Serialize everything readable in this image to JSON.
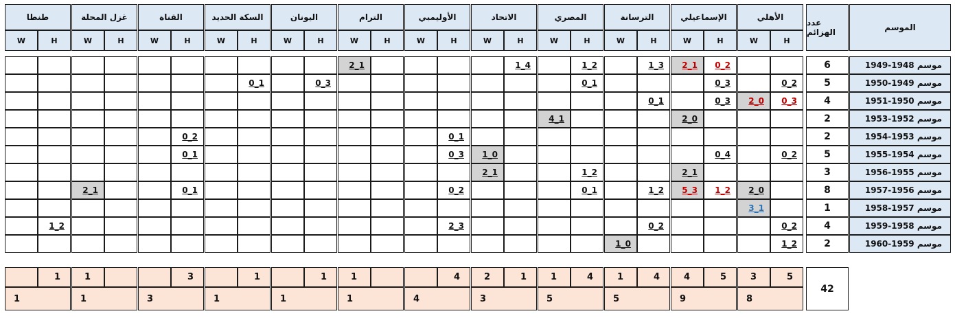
{
  "header": {
    "season_label": "الموسم",
    "count_label": "عدد الهزائم",
    "h_label": "H",
    "w_label": "W",
    "teams": [
      "الأهلي",
      "الإسماعيلي",
      "الترسانة",
      "المصري",
      "الاتحاد",
      "الأوليمبي",
      "الترام",
      "اليونان",
      "السكة الحديد",
      "القناة",
      "غزل المحلة",
      "طنطا"
    ]
  },
  "rows": [
    {
      "season": "موسم 1948-1949",
      "count": "6"
    },
    {
      "season": "موسم 1949-1950",
      "count": "5"
    },
    {
      "season": "موسم 1950-1951",
      "count": "4"
    },
    {
      "season": "موسم 1952-1953",
      "count": "2"
    },
    {
      "season": "موسم 1953-1954",
      "count": "2"
    },
    {
      "season": "موسم 1954-1955",
      "count": "5"
    },
    {
      "season": "موسم 1955-1956",
      "count": "3"
    },
    {
      "season": "موسم 1956-1957",
      "count": "8"
    },
    {
      "season": "موسم 1957-1958",
      "count": "1"
    },
    {
      "season": "موسم 1958-1959",
      "count": "4"
    },
    {
      "season": "موسم 1959-1960",
      "count": "2"
    }
  ],
  "scores": [
    {
      "row": 0,
      "team": 1,
      "side": "H",
      "text": "0_2",
      "color": "red"
    },
    {
      "row": 0,
      "team": 1,
      "side": "W",
      "text": "2_1",
      "color": "red",
      "grey": true
    },
    {
      "row": 0,
      "team": 2,
      "side": "H",
      "text": "1_3"
    },
    {
      "row": 0,
      "team": 3,
      "side": "H",
      "text": "1_2"
    },
    {
      "row": 0,
      "team": 4,
      "side": "H",
      "text": "1_4"
    },
    {
      "row": 0,
      "team": 6,
      "side": "W",
      "text": "2_1",
      "grey": true
    },
    {
      "row": 1,
      "team": 0,
      "side": "H",
      "text": "0_2"
    },
    {
      "row": 1,
      "team": 1,
      "side": "H",
      "text": "0_3"
    },
    {
      "row": 1,
      "team": 3,
      "side": "H",
      "text": "0_1"
    },
    {
      "row": 1,
      "team": 7,
      "side": "H",
      "text": "0_3"
    },
    {
      "row": 1,
      "team": 8,
      "side": "H",
      "text": "0_1"
    },
    {
      "row": 2,
      "team": 0,
      "side": "H",
      "text": "0_3",
      "color": "red"
    },
    {
      "row": 2,
      "team": 0,
      "side": "W",
      "text": "2_0",
      "color": "red",
      "grey": true
    },
    {
      "row": 2,
      "team": 1,
      "side": "H",
      "text": "0_3"
    },
    {
      "row": 2,
      "team": 2,
      "side": "H",
      "text": "0_1"
    },
    {
      "row": 3,
      "team": 1,
      "side": "W",
      "text": "2_0",
      "grey": true
    },
    {
      "row": 3,
      "team": 3,
      "side": "W",
      "text": "4_1",
      "grey": true
    },
    {
      "row": 4,
      "team": 5,
      "side": "H",
      "text": "0_1"
    },
    {
      "row": 4,
      "team": 9,
      "side": "H",
      "text": "0_2"
    },
    {
      "row": 5,
      "team": 0,
      "side": "H",
      "text": "0_2"
    },
    {
      "row": 5,
      "team": 1,
      "side": "H",
      "text": "0_4"
    },
    {
      "row": 5,
      "team": 4,
      "side": "W",
      "text": "1_0",
      "grey": true
    },
    {
      "row": 5,
      "team": 5,
      "side": "H",
      "text": "0_3"
    },
    {
      "row": 5,
      "team": 9,
      "side": "H",
      "text": "0_1"
    },
    {
      "row": 6,
      "team": 1,
      "side": "W",
      "text": "2_1",
      "grey": true
    },
    {
      "row": 6,
      "team": 3,
      "side": "H",
      "text": "1_2"
    },
    {
      "row": 6,
      "team": 4,
      "side": "W",
      "text": "2_1",
      "grey": true
    },
    {
      "row": 7,
      "team": 0,
      "side": "W",
      "text": "2_0",
      "grey": true
    },
    {
      "row": 7,
      "team": 1,
      "side": "H",
      "text": "1_2",
      "color": "red"
    },
    {
      "row": 7,
      "team": 1,
      "side": "W",
      "text": "5_3",
      "color": "red",
      "grey": true
    },
    {
      "row": 7,
      "team": 2,
      "side": "H",
      "text": "1_2"
    },
    {
      "row": 7,
      "team": 3,
      "side": "H",
      "text": "0_1"
    },
    {
      "row": 7,
      "team": 5,
      "side": "H",
      "text": "0_2"
    },
    {
      "row": 7,
      "team": 9,
      "side": "H",
      "text": "0_1"
    },
    {
      "row": 7,
      "team": 10,
      "side": "W",
      "text": "2_1",
      "grey": true
    },
    {
      "row": 8,
      "team": 0,
      "side": "W",
      "text": "3_1",
      "color": "blue",
      "grey": true
    },
    {
      "row": 9,
      "team": 0,
      "side": "H",
      "text": "0_2"
    },
    {
      "row": 9,
      "team": 2,
      "side": "H",
      "text": "0_2"
    },
    {
      "row": 9,
      "team": 5,
      "side": "H",
      "text": "2_3"
    },
    {
      "row": 9,
      "team": 11,
      "side": "H",
      "text": "1_2"
    },
    {
      "row": 10,
      "team": 0,
      "side": "H",
      "text": "1_2"
    },
    {
      "row": 10,
      "team": 2,
      "side": "W",
      "text": "1_0",
      "grey": true
    }
  ],
  "totals": [
    {
      "h": "5",
      "w": "3",
      "sum": "8"
    },
    {
      "h": "5",
      "w": "4",
      "sum": "9"
    },
    {
      "h": "4",
      "w": "1",
      "sum": "5"
    },
    {
      "h": "4",
      "w": "1",
      "sum": "5"
    },
    {
      "h": "1",
      "w": "2",
      "sum": "3"
    },
    {
      "h": "4",
      "w": "",
      "sum": "4"
    },
    {
      "h": "",
      "w": "1",
      "sum": "1"
    },
    {
      "h": "1",
      "w": "",
      "sum": "1"
    },
    {
      "h": "1",
      "w": "",
      "sum": "1"
    },
    {
      "h": "3",
      "w": "",
      "sum": "3"
    },
    {
      "h": "",
      "w": "1",
      "sum": "1"
    },
    {
      "h": "1",
      "w": "",
      "sum": "1"
    }
  ],
  "grand_total": "42"
}
